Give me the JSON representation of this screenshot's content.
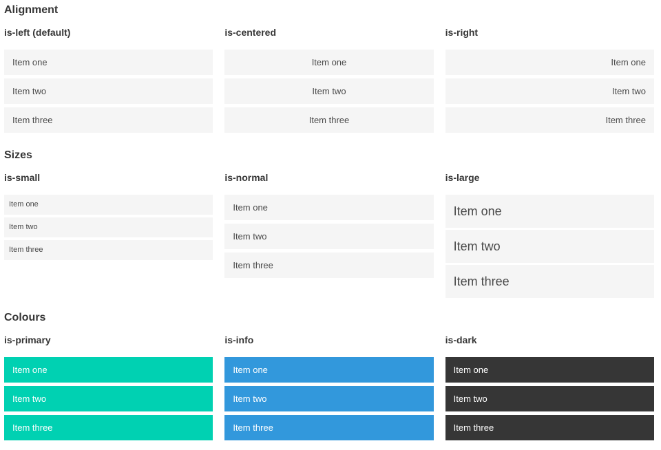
{
  "colors": {
    "primary": "#00d1b2",
    "info": "#3298dc",
    "dark": "#363636",
    "item_background_light": "#f5f5f5",
    "item_text": "#4a4a4a",
    "heading_text": "#363636",
    "colour_item_text": "#ffffff"
  },
  "sections": [
    {
      "title": "Alignment",
      "groups": [
        {
          "label": "is-left (default)",
          "items": [
            "Item one",
            "Item two",
            "Item three"
          ]
        },
        {
          "label": "is-centered",
          "items": [
            "Item one",
            "Item two",
            "Item three"
          ]
        },
        {
          "label": "is-right",
          "items": [
            "Item one",
            "Item two",
            "Item three"
          ]
        }
      ]
    },
    {
      "title": "Sizes",
      "groups": [
        {
          "label": "is-small",
          "items": [
            "Item one",
            "Item two",
            "Item three"
          ]
        },
        {
          "label": "is-normal",
          "items": [
            "Item one",
            "Item two",
            "Item three"
          ]
        },
        {
          "label": "is-large",
          "items": [
            "Item one",
            "Item two",
            "Item three"
          ]
        }
      ]
    },
    {
      "title": "Colours",
      "groups": [
        {
          "label": "is-primary",
          "items": [
            "Item one",
            "Item two",
            "Item three"
          ]
        },
        {
          "label": "is-info",
          "items": [
            "Item one",
            "Item two",
            "Item three"
          ]
        },
        {
          "label": "is-dark",
          "items": [
            "Item one",
            "Item two",
            "Item three"
          ]
        }
      ]
    }
  ]
}
